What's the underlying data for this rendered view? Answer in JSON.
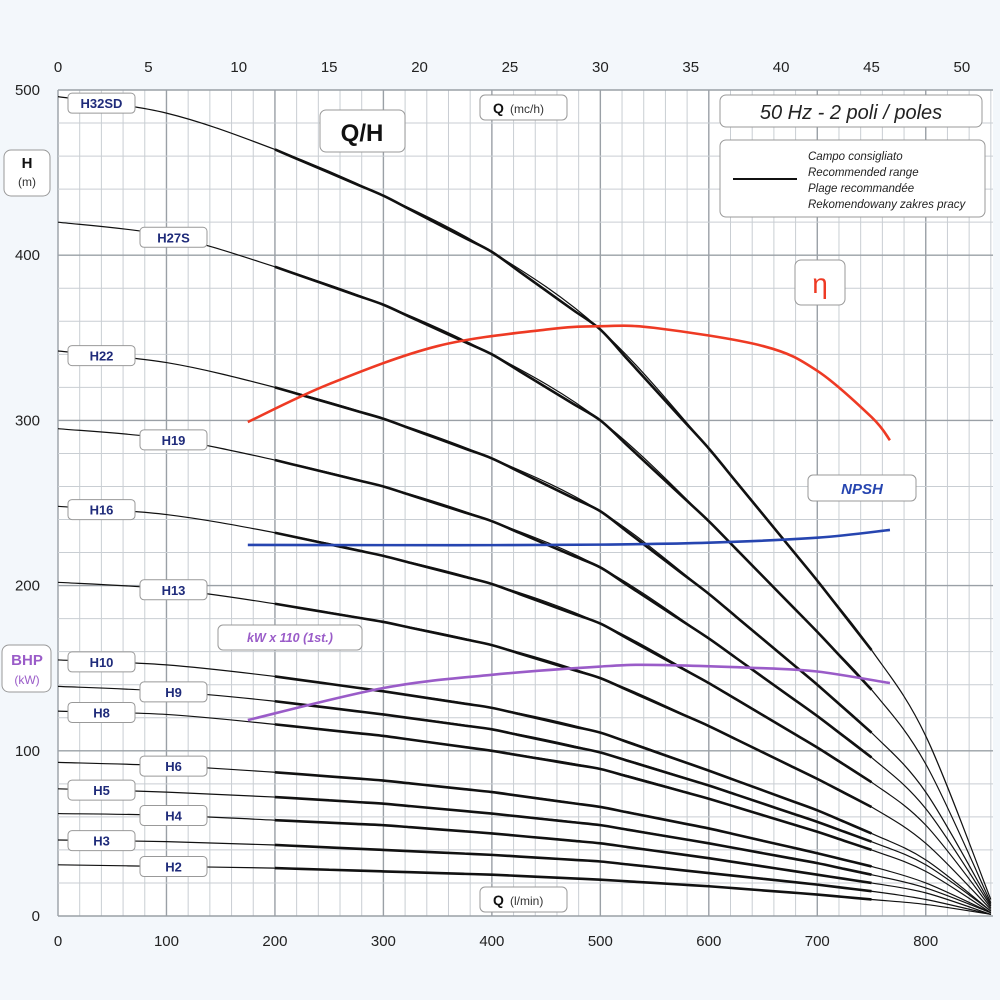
{
  "chart_data": {
    "type": "line",
    "title": "Q/H",
    "subtitle": "50 Hz - 2 poli / poles",
    "xlabel": "Q",
    "xlabel_unit": "(l/min)",
    "x2label": "Q",
    "x2label_unit": "(mc/h)",
    "ylabel": "H",
    "ylabel_unit": "(m)",
    "y2label": "BHP",
    "y2label_unit": "(kW)",
    "xlim": [
      0,
      862
    ],
    "ylim": [
      0,
      500
    ],
    "x_ticks": [
      0,
      100,
      200,
      300,
      400,
      500,
      600,
      700,
      800
    ],
    "x2_ticks": [
      0,
      5,
      10,
      15,
      20,
      25,
      30,
      35,
      40,
      45,
      50
    ],
    "y_ticks": [
      0,
      100,
      200,
      300,
      400,
      500
    ],
    "grid": true,
    "legend": {
      "position": "top-right",
      "lines": [
        "Campo consigliato",
        "Recommended range",
        "Plage recommandée",
        "Rekomendowany zakres pracy"
      ]
    },
    "recommended_range": [
      200,
      750
    ],
    "x": [
      0,
      100,
      200,
      300,
      400,
      500,
      600,
      700,
      750,
      800,
      860
    ],
    "series": [
      {
        "name": "H32SD",
        "values": [
          496,
          486,
          464,
          436,
          402,
          355,
          283,
          203,
          161,
          109,
          10
        ]
      },
      {
        "name": "H27S",
        "values": [
          420,
          412,
          393,
          370,
          340,
          300,
          239,
          172,
          137,
          92,
          8
        ]
      },
      {
        "name": "H22",
        "values": [
          342,
          335,
          320,
          301,
          277,
          245,
          195,
          140,
          111,
          75,
          7
        ]
      },
      {
        "name": "H19",
        "values": [
          295,
          289,
          276,
          260,
          239,
          211,
          168,
          121,
          96,
          65,
          6
        ]
      },
      {
        "name": "H16",
        "values": [
          248,
          243,
          232,
          218,
          201,
          177,
          141,
          102,
          81,
          55,
          5
        ]
      },
      {
        "name": "H13",
        "values": [
          202,
          198,
          189,
          178,
          164,
          144,
          115,
          83,
          66,
          44,
          4
        ]
      },
      {
        "name": "H10",
        "values": [
          155,
          152,
          145,
          136,
          126,
          111,
          88,
          64,
          50,
          34,
          3
        ]
      },
      {
        "name": "H9",
        "values": [
          139,
          136,
          130,
          122,
          113,
          99,
          79,
          57,
          45,
          31,
          3
        ]
      },
      {
        "name": "H8",
        "values": [
          124,
          122,
          116,
          109,
          100,
          89,
          71,
          51,
          40,
          27,
          2
        ]
      },
      {
        "name": "H6",
        "values": [
          93,
          91,
          87,
          82,
          75,
          66,
          53,
          38,
          30,
          20,
          2
        ]
      },
      {
        "name": "H5",
        "values": [
          77,
          75,
          72,
          68,
          62,
          55,
          44,
          32,
          25,
          17,
          2
        ]
      },
      {
        "name": "H4",
        "values": [
          62,
          61,
          58,
          55,
          50,
          44,
          35,
          25,
          20,
          14,
          1
        ]
      },
      {
        "name": "H3",
        "values": [
          46,
          45,
          43,
          40,
          37,
          33,
          26,
          19,
          15,
          10,
          1
        ]
      },
      {
        "name": "H2",
        "values": [
          31,
          30,
          29,
          27,
          25,
          22,
          18,
          13,
          10,
          7,
          1
        ]
      }
    ],
    "extra_curves": [
      {
        "name": "η",
        "color": "#ee3a24",
        "x": [
          175,
          250,
          350,
          450,
          500,
          550,
          650,
          700,
          750,
          767
        ],
        "values": [
          299,
          322,
          345,
          355,
          357,
          356,
          345,
          330,
          302,
          288
        ]
      },
      {
        "name": "NPSH",
        "color": "#2645b0",
        "x": [
          175,
          300,
          400,
          500,
          600,
          700,
          767
        ],
        "values": [
          224.6,
          224.5,
          224.5,
          224.8,
          226,
          229,
          233.7
        ]
      },
      {
        "name": "kW x 110 (1st.)",
        "color": "#9a5cc8",
        "x": [
          175,
          300,
          400,
          500,
          550,
          650,
          700,
          767
        ],
        "values": [
          118.6,
          138,
          146,
          151,
          152,
          150,
          148,
          141
        ]
      }
    ]
  }
}
